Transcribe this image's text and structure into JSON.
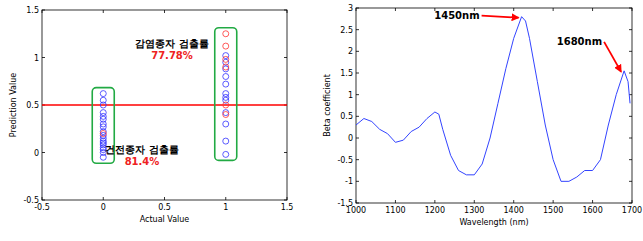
{
  "chart_data": [
    {
      "type": "scatter",
      "x_label": "Actual Value",
      "y_label": "Prediction Value",
      "xlim": [
        -0.5,
        1.5
      ],
      "xticks": [
        -0.5,
        0,
        0.5,
        1,
        1.5
      ],
      "ylim": [
        -0.5,
        1.5
      ],
      "yticks": [
        -0.5,
        0,
        0.5,
        1,
        1.5
      ],
      "marker": "circle",
      "series": [
        {
          "color": "#3333ff",
          "x": [
            0,
            0,
            0,
            0,
            0,
            0,
            0,
            0,
            0,
            0,
            0,
            0,
            0,
            0,
            0,
            0,
            0,
            0,
            1,
            1,
            1,
            1,
            1,
            1,
            1,
            1,
            1,
            1,
            1,
            1
          ],
          "values": [
            0.62,
            0.55,
            0.5,
            0.42,
            0.38,
            0.35,
            0.3,
            0.27,
            0.22,
            0.18,
            0.15,
            0.12,
            0.1,
            0.08,
            0.05,
            0.03,
            0.0,
            -0.05,
            1.02,
            0.95,
            0.88,
            0.8,
            0.72,
            0.62,
            0.58,
            0.55,
            0.42,
            0.3,
            0.12,
            -0.02
          ]
        },
        {
          "color": "#ff3333",
          "x": [
            0,
            1,
            1,
            1,
            1,
            1,
            1
          ],
          "values": [
            0.2,
            1.25,
            1.12,
            0.98,
            0.9,
            0.5,
            0.4
          ]
        }
      ],
      "reference_line": {
        "value": 0.5,
        "color": "#ff0000"
      },
      "annotations": [
        {
          "text": "감염종자 검출률",
          "value_text": "77.78%"
        },
        {
          "text": "건전종자 검출률",
          "value_text": "81.4%"
        }
      ]
    },
    {
      "type": "line",
      "x_label": "Wavelength (nm)",
      "y_label": "Beta coefficient",
      "xlim": [
        1000,
        1700
      ],
      "xticks": [
        1000,
        1100,
        1200,
        1300,
        1400,
        1500,
        1600,
        1700
      ],
      "ylim": [
        -1.5,
        3
      ],
      "yticks": [
        -1.5,
        -1,
        -0.5,
        0,
        0.5,
        1,
        1.5,
        2,
        2.5,
        3
      ],
      "color": "#3344ff",
      "x": [
        1000,
        1020,
        1040,
        1060,
        1080,
        1100,
        1120,
        1140,
        1160,
        1180,
        1200,
        1210,
        1220,
        1240,
        1260,
        1280,
        1300,
        1320,
        1340,
        1360,
        1380,
        1400,
        1420,
        1430,
        1440,
        1460,
        1480,
        1500,
        1520,
        1540,
        1560,
        1580,
        1600,
        1620,
        1640,
        1660,
        1680,
        1690,
        1695
      ],
      "values": [
        0.3,
        0.45,
        0.38,
        0.2,
        0.1,
        -0.1,
        -0.05,
        0.15,
        0.25,
        0.45,
        0.6,
        0.55,
        0.2,
        -0.4,
        -0.75,
        -0.85,
        -0.85,
        -0.6,
        0.0,
        0.8,
        1.6,
        2.3,
        2.8,
        2.7,
        2.3,
        1.3,
        0.3,
        -0.5,
        -1.0,
        -1.0,
        -0.9,
        -0.75,
        -0.75,
        -0.5,
        0.3,
        1.0,
        1.55,
        1.3,
        0.8
      ],
      "annotations": [
        {
          "text": "1450nm",
          "x": 1420,
          "y": 2.8,
          "color": "#ff0000"
        },
        {
          "text": "1680nm",
          "x": 1680,
          "y": 1.55,
          "color": "#ff0000"
        }
      ]
    }
  ]
}
